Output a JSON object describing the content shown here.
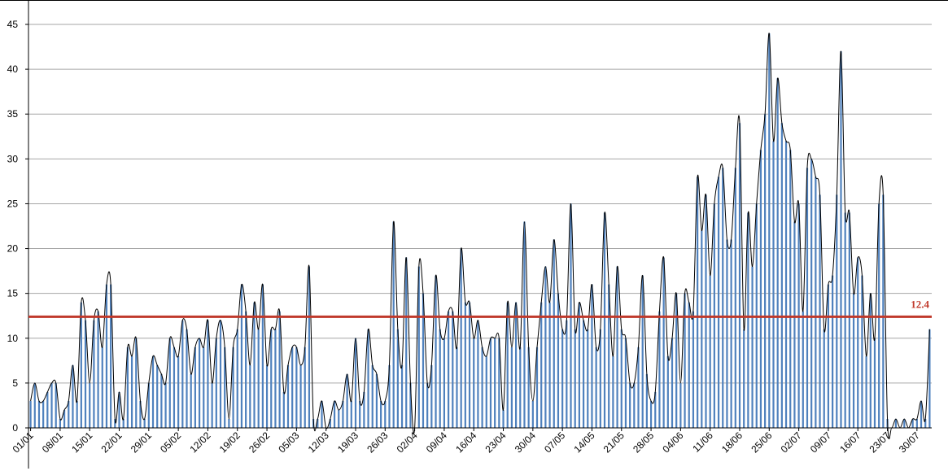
{
  "chart_data": {
    "type": "bar",
    "title": "",
    "xlabel": "",
    "ylabel": "",
    "ylim": [
      0,
      45
    ],
    "yticks": [
      0,
      5,
      10,
      15,
      20,
      25,
      30,
      35,
      40,
      45
    ],
    "xtick_labels": [
      "01/01",
      "08/01",
      "15/01",
      "22/01",
      "29/01",
      "05/02",
      "12/02",
      "19/02",
      "26/02",
      "05/03",
      "12/03",
      "19/03",
      "26/03",
      "02/04",
      "09/04",
      "16/04",
      "23/04",
      "30/04",
      "07/05",
      "14/05",
      "21/05",
      "28/05",
      "04/06",
      "11/06",
      "18/06",
      "25/06",
      "02/07",
      "09/07",
      "16/07",
      "23/07",
      "30/07"
    ],
    "grid": true,
    "series": [
      {
        "values": [
          3,
          5,
          3,
          3,
          4,
          5,
          5,
          1,
          2,
          3,
          7,
          3,
          14,
          12,
          5,
          12,
          13,
          9,
          16,
          16,
          1,
          4,
          1,
          9,
          8,
          10,
          3,
          1,
          5,
          8,
          7,
          6,
          5,
          10,
          9,
          8,
          12,
          11,
          6,
          9,
          10,
          9,
          12,
          5,
          10,
          12,
          9,
          1,
          9,
          11,
          16,
          13,
          7,
          14,
          11,
          16,
          7,
          11,
          11,
          13,
          4,
          7,
          9,
          9,
          7,
          9,
          18,
          1,
          1,
          3,
          0,
          1,
          3,
          2,
          3,
          6,
          3,
          10,
          3,
          4,
          11,
          7,
          6,
          3,
          3,
          7,
          23,
          11,
          7,
          19,
          5,
          0,
          18,
          15,
          5,
          7,
          17,
          11,
          10,
          13,
          13,
          9,
          20,
          14,
          14,
          10,
          12,
          9,
          8,
          10,
          10,
          10,
          2,
          14,
          9,
          14,
          9,
          23,
          9,
          3,
          9,
          14,
          18,
          14,
          21,
          15,
          11,
          12,
          25,
          11,
          14,
          12,
          11,
          16,
          9,
          11,
          24,
          16,
          8,
          18,
          11,
          10,
          5,
          5,
          9,
          17,
          6,
          3,
          4,
          13,
          19,
          8,
          10,
          15,
          5,
          15,
          14,
          13,
          28,
          22,
          26,
          17,
          25,
          28,
          29,
          21,
          21,
          29,
          34,
          11,
          24,
          18,
          25,
          31,
          35,
          44,
          32,
          39,
          34,
          32,
          31,
          23,
          25,
          13,
          29,
          30,
          28,
          26,
          11,
          16,
          17,
          26,
          42,
          24,
          24,
          15,
          19,
          17,
          8,
          15,
          10,
          25,
          26,
          1,
          0,
          1,
          0,
          1,
          0,
          1,
          1,
          3,
          1,
          11
        ]
      }
    ],
    "average": {
      "value": 12.4,
      "label": "12.4",
      "color": "#c0392b"
    },
    "colors": {
      "bar": "#4f81bd",
      "line": "#000000",
      "grid": "#a6a6a6"
    }
  }
}
